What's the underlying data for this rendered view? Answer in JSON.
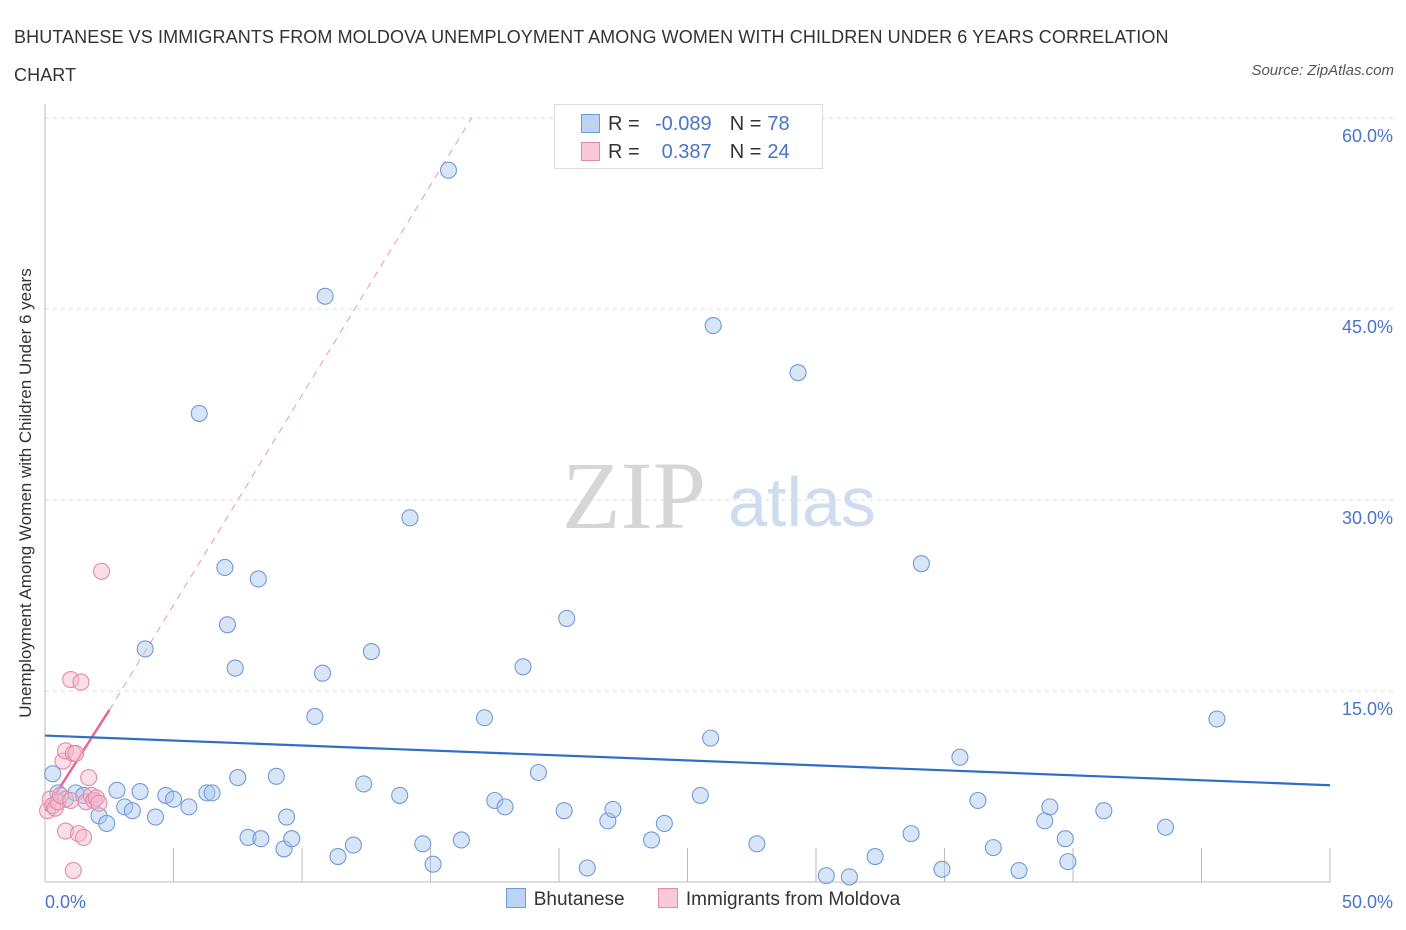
{
  "header": {
    "title": "BHUTANESE VS IMMIGRANTS FROM MOLDOVA UNEMPLOYMENT AMONG WOMEN WITH CHILDREN UNDER 6 YEARS CORRELATION CHART",
    "source": "Source: ZipAtlas.com"
  },
  "watermark": {
    "zip": "ZIP",
    "atlas": "atlas"
  },
  "stats_legend": {
    "r_label": "R =",
    "n_label": "N =",
    "series": [
      {
        "r": "-0.089",
        "n": "78"
      },
      {
        "r": "0.387",
        "n": "24"
      }
    ]
  },
  "colors": {
    "blue_fill": "#a9c6ee",
    "blue_stroke": "#6f9bd8",
    "blue_line": "#2f6ec8",
    "pink_fill": "#f5b8cb",
    "pink_stroke": "#e58aa8",
    "pink_line": "#e8669a",
    "tick_label": "#4a74c9",
    "grid": "#d9d9d9"
  },
  "chart_data": {
    "type": "scatter",
    "title": "BHUTANESE VS IMMIGRANTS FROM MOLDOVA UNEMPLOYMENT AMONG WOMEN WITH CHILDREN UNDER 6 YEARS CORRELATION CHART",
    "xlabel": "",
    "ylabel": "Unemployment Among Women with Children Under 6 years",
    "xlim": [
      0,
      50
    ],
    "ylim": [
      0,
      60
    ],
    "x_tick_labels": [
      "0.0%",
      "50.0%"
    ],
    "y_ticks": [
      15,
      30,
      45,
      60
    ],
    "y_tick_labels": [
      "15.0%",
      "30.0%",
      "45.0%",
      "60.0%"
    ],
    "grid": true,
    "legend": [
      "Bhutanese",
      "Immigrants from Moldova"
    ],
    "series": [
      {
        "name": "Bhutanese",
        "color": "blue",
        "points": [
          [
            0.3,
            8.5
          ],
          [
            0.5,
            7.0
          ],
          [
            0.8,
            6.5
          ],
          [
            1.2,
            7.0
          ],
          [
            1.5,
            6.8
          ],
          [
            1.9,
            6.4
          ],
          [
            2.1,
            5.2
          ],
          [
            2.4,
            4.6
          ],
          [
            2.8,
            7.2
          ],
          [
            3.1,
            5.9
          ],
          [
            3.4,
            5.6
          ],
          [
            3.7,
            7.1
          ],
          [
            3.9,
            18.3
          ],
          [
            4.3,
            5.1
          ],
          [
            4.7,
            6.8
          ],
          [
            5.0,
            6.5
          ],
          [
            5.6,
            5.9
          ],
          [
            6.0,
            36.8
          ],
          [
            6.3,
            7.0
          ],
          [
            6.5,
            7.0
          ],
          [
            7.1,
            20.2
          ],
          [
            7.0,
            24.7
          ],
          [
            7.4,
            16.8
          ],
          [
            7.5,
            8.2
          ],
          [
            7.9,
            3.5
          ],
          [
            8.4,
            3.4
          ],
          [
            8.3,
            23.8
          ],
          [
            9.0,
            8.3
          ],
          [
            9.3,
            2.6
          ],
          [
            9.4,
            5.1
          ],
          [
            9.6,
            3.4
          ],
          [
            10.5,
            13.0
          ],
          [
            10.8,
            16.4
          ],
          [
            10.9,
            46.0
          ],
          [
            11.4,
            2.0
          ],
          [
            12.0,
            2.9
          ],
          [
            12.4,
            7.7
          ],
          [
            12.7,
            18.1
          ],
          [
            13.8,
            6.8
          ],
          [
            14.2,
            28.6
          ],
          [
            14.7,
            3.0
          ],
          [
            15.1,
            1.4
          ],
          [
            15.7,
            55.9
          ],
          [
            16.2,
            3.3
          ],
          [
            17.1,
            12.9
          ],
          [
            17.5,
            6.4
          ],
          [
            17.9,
            5.9
          ],
          [
            18.6,
            16.9
          ],
          [
            19.2,
            8.6
          ],
          [
            20.2,
            5.6
          ],
          [
            20.3,
            20.7
          ],
          [
            21.1,
            1.1
          ],
          [
            21.9,
            4.8
          ],
          [
            22.1,
            5.7
          ],
          [
            23.6,
            3.3
          ],
          [
            24.1,
            4.6
          ],
          [
            25.5,
            6.8
          ],
          [
            25.9,
            11.3
          ],
          [
            26.0,
            43.7
          ],
          [
            27.7,
            3.0
          ],
          [
            29.3,
            40.0
          ],
          [
            30.4,
            0.5
          ],
          [
            31.3,
            0.4
          ],
          [
            32.3,
            2.0
          ],
          [
            33.7,
            3.8
          ],
          [
            34.1,
            25.0
          ],
          [
            34.9,
            1.0
          ],
          [
            35.6,
            9.8
          ],
          [
            36.3,
            6.4
          ],
          [
            36.9,
            2.7
          ],
          [
            37.9,
            0.9
          ],
          [
            38.9,
            4.8
          ],
          [
            39.1,
            5.9
          ],
          [
            39.7,
            3.4
          ],
          [
            39.8,
            1.6
          ],
          [
            41.2,
            5.6
          ],
          [
            43.6,
            4.3
          ],
          [
            45.6,
            12.8
          ]
        ],
        "trend": {
          "x": [
            0,
            50
          ],
          "y": [
            11.5,
            7.6
          ]
        }
      },
      {
        "name": "Immigrants from Moldova",
        "color": "pink",
        "points": [
          [
            0.1,
            5.6
          ],
          [
            0.2,
            6.5
          ],
          [
            0.3,
            6.0
          ],
          [
            0.4,
            5.8
          ],
          [
            0.5,
            6.3
          ],
          [
            0.6,
            6.8
          ],
          [
            0.7,
            9.5
          ],
          [
            0.8,
            10.3
          ],
          [
            0.8,
            4.0
          ],
          [
            1.0,
            6.4
          ],
          [
            1.1,
            10.1
          ],
          [
            1.0,
            15.9
          ],
          [
            1.2,
            10.1
          ],
          [
            1.1,
            0.9
          ],
          [
            1.3,
            3.8
          ],
          [
            1.4,
            15.7
          ],
          [
            1.5,
            3.5
          ],
          [
            1.6,
            6.3
          ],
          [
            1.7,
            8.2
          ],
          [
            1.8,
            6.8
          ],
          [
            1.9,
            6.4
          ],
          [
            2.0,
            6.6
          ],
          [
            2.1,
            6.2
          ],
          [
            2.2,
            24.4
          ]
        ],
        "trend_solid": {
          "x": [
            0,
            2.5
          ],
          "y": [
            5.6,
            13.5
          ]
        },
        "trend_dashed": {
          "x": [
            2.5,
            16.6
          ],
          "y": [
            13.5,
            60.0
          ]
        }
      }
    ]
  }
}
